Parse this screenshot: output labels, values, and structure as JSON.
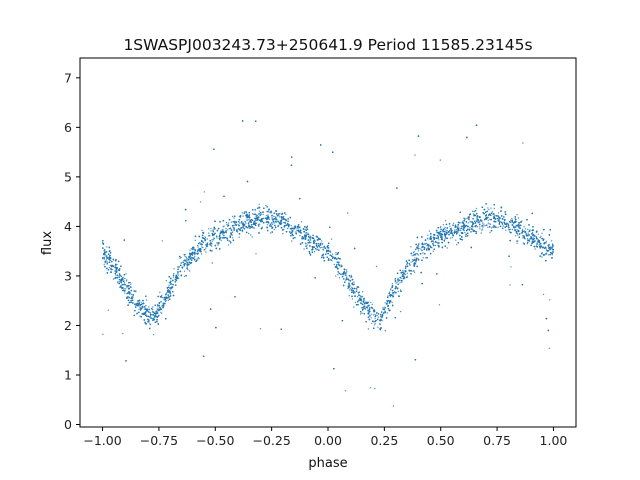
{
  "chart_data": {
    "type": "scatter",
    "title": "1SWASPJ003243.73+250641.9 Period 11585.23145s",
    "xlabel": "phase",
    "ylabel": "flux",
    "xlim": [
      -1.1,
      1.1
    ],
    "ylim": [
      -0.05,
      7.4
    ],
    "xticks": [
      -1.0,
      -0.75,
      -0.5,
      -0.25,
      0.0,
      0.25,
      0.5,
      0.75,
      1.0
    ],
    "xtick_labels": [
      "−1.00",
      "−0.75",
      "−0.50",
      "−0.25",
      "0.00",
      "0.25",
      "0.50",
      "0.75",
      "1.00"
    ],
    "yticks": [
      0,
      1,
      2,
      3,
      4,
      5,
      6,
      7
    ],
    "ytick_labels": [
      "0",
      "1",
      "2",
      "3",
      "4",
      "5",
      "6",
      "7"
    ],
    "grid": false,
    "marker_color": "#1f77b4",
    "series": [
      {
        "x": [
          -1.0,
          -0.95,
          -0.9,
          -0.85,
          -0.8,
          -0.77,
          -0.75,
          -0.7,
          -0.65,
          -0.6,
          -0.55,
          -0.5,
          -0.45,
          -0.4,
          -0.35,
          -0.3,
          -0.25,
          -0.2,
          -0.15,
          -0.1,
          -0.05,
          0.0,
          0.05,
          0.1,
          0.15,
          0.2,
          0.23,
          0.25,
          0.3,
          0.35,
          0.4,
          0.45,
          0.5,
          0.55,
          0.6,
          0.65,
          0.7,
          0.75,
          0.8,
          0.85,
          0.9,
          0.95,
          1.0
        ],
        "y": [
          3.5,
          3.2,
          2.8,
          2.45,
          2.2,
          2.15,
          2.3,
          2.75,
          3.15,
          3.45,
          3.7,
          3.8,
          3.9,
          4.0,
          4.1,
          4.15,
          4.15,
          4.1,
          3.95,
          3.8,
          3.6,
          3.5,
          3.2,
          2.8,
          2.45,
          2.2,
          2.15,
          2.3,
          2.75,
          3.15,
          3.45,
          3.7,
          3.8,
          3.9,
          4.0,
          4.1,
          4.15,
          4.15,
          4.1,
          3.95,
          3.8,
          3.6,
          3.5
        ]
      }
    ]
  }
}
